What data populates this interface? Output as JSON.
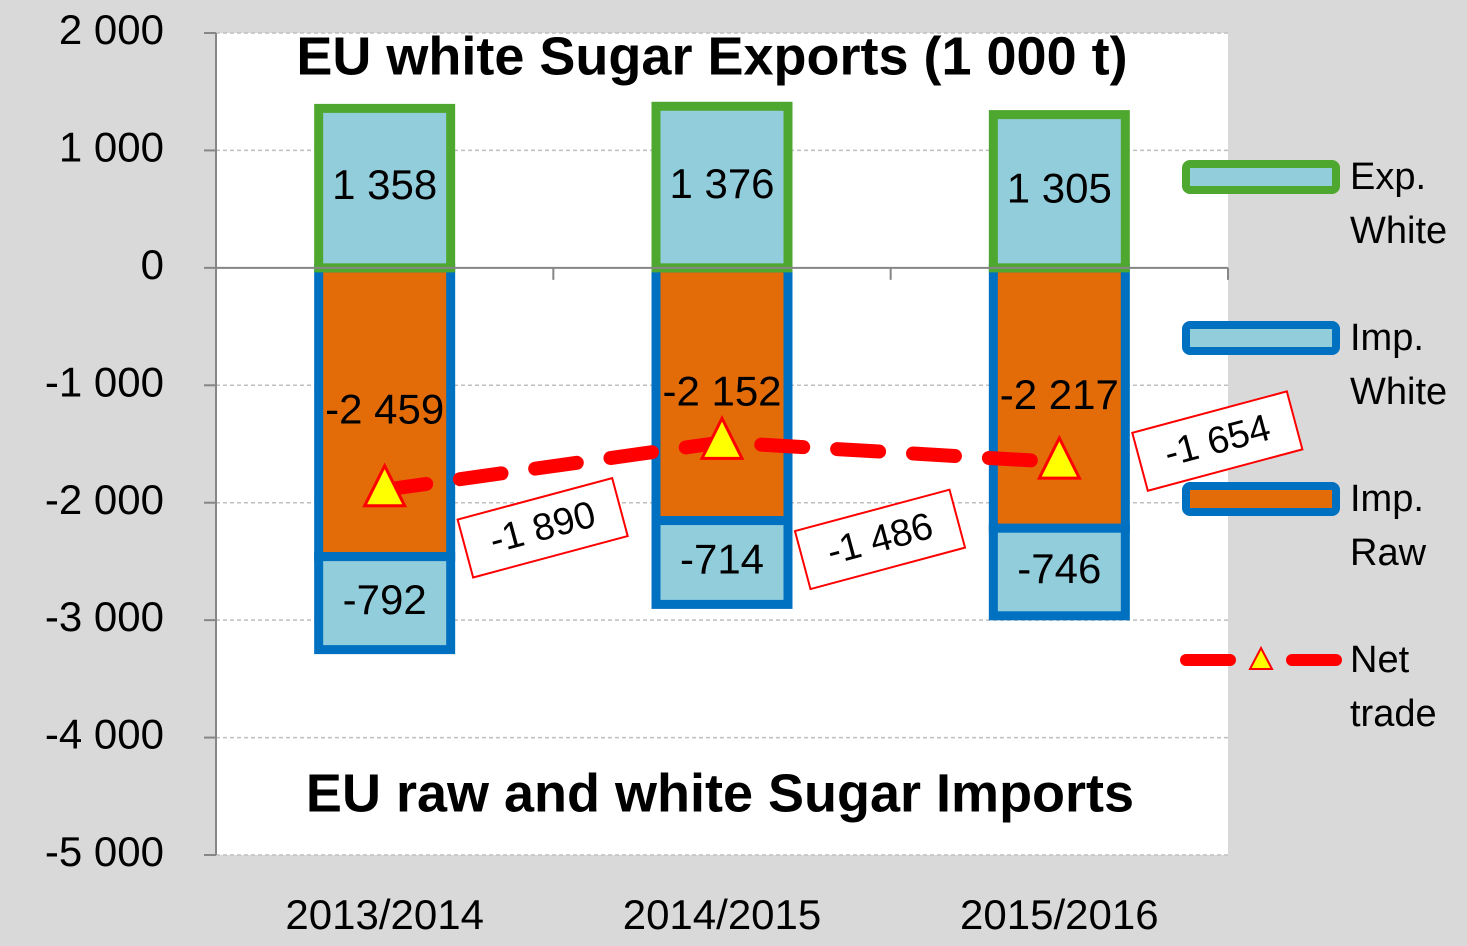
{
  "chart_data": {
    "type": "stacked-bar-line",
    "title": "EU white Sugar Exports (1 000 t)",
    "annotations": [
      "EU raw and white Sugar Imports"
    ],
    "categories": [
      "2013/2014",
      "2014/2015",
      "2015/2016"
    ],
    "series": [
      {
        "name": "Imp. Raw",
        "type": "bar",
        "color": "#e36c09",
        "edge_color": "#0070c0",
        "values": [
          -2459,
          -2152,
          -2217
        ],
        "value_labels": [
          "-2 459",
          "-2 152",
          "-2 217"
        ]
      },
      {
        "name": "Imp. White",
        "type": "bar",
        "color": "#92cddc",
        "edge_color": "#0070c0",
        "values": [
          -792,
          -714,
          -746
        ],
        "value_labels": [
          "-792",
          "-714",
          "-746"
        ]
      },
      {
        "name": "Exp. White",
        "type": "bar",
        "color": "#92cddc",
        "edge_color": "#4ea72e",
        "values": [
          1358,
          1376,
          1305
        ],
        "value_labels": [
          "1 358",
          "1 376",
          "1 305"
        ]
      },
      {
        "name": "Net trade",
        "type": "line",
        "color": "#ff0000",
        "marker_color": "#ffff00",
        "values": [
          -1890,
          -1486,
          -1654
        ],
        "value_labels": [
          "-1 890",
          "-1 486",
          "-1 654"
        ]
      }
    ],
    "ylim": [
      -5000,
      2000
    ],
    "yticks": [
      {
        "value": -5000,
        "label": "-5 000"
      },
      {
        "value": -4000,
        "label": "-4 000"
      },
      {
        "value": -3000,
        "label": "-3 000"
      },
      {
        "value": -2000,
        "label": "-2 000"
      },
      {
        "value": -1000,
        "label": "-1 000"
      },
      0,
      {
        "value": 1000,
        "label": "1 000"
      },
      {
        "value": 2000,
        "label": "2 000"
      }
    ],
    "grid": true,
    "legend": "right"
  }
}
